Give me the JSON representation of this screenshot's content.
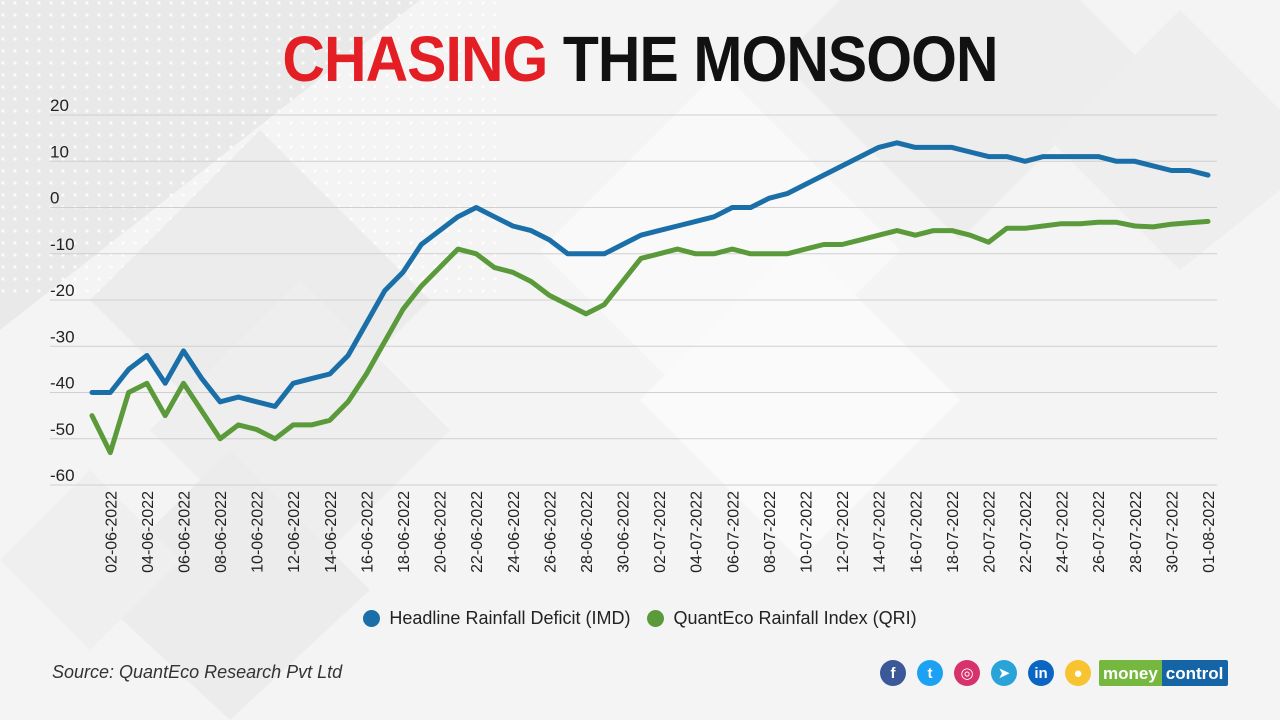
{
  "title": {
    "highlight": "CHASING",
    "rest": "THE MONSOON"
  },
  "colors": {
    "title_highlight": "#e31e24",
    "series_imd": "#1b6fa8",
    "series_qri": "#5b9a3a"
  },
  "source": "Source:  QuantEco Research Pvt Ltd",
  "social": [
    {
      "name": "facebook-icon",
      "glyph": "f",
      "color": "#3b5998"
    },
    {
      "name": "twitter-icon",
      "glyph": "t",
      "color": "#1da1f2"
    },
    {
      "name": "instagram-icon",
      "glyph": "◎",
      "color": "#d6336c"
    },
    {
      "name": "telegram-icon",
      "glyph": "➤",
      "color": "#2aa3d8"
    },
    {
      "name": "linkedin-icon",
      "glyph": "in",
      "color": "#0a66c2"
    },
    {
      "name": "koo-icon",
      "glyph": "●",
      "color": "#f7c331"
    }
  ],
  "brand": {
    "part1": "money",
    "part2": "control"
  },
  "chart_data": {
    "type": "line",
    "title": "CHASING THE MONSOON",
    "ylim": [
      -60,
      20
    ],
    "yticks": [
      20,
      10,
      0,
      -10,
      -20,
      -30,
      -40,
      -50,
      -60
    ],
    "grid": true,
    "legend_position": "bottom",
    "x": [
      "01-06-2022",
      "02-06-2022",
      "03-06-2022",
      "04-06-2022",
      "05-06-2022",
      "06-06-2022",
      "07-06-2022",
      "08-06-2022",
      "09-06-2022",
      "10-06-2022",
      "11-06-2022",
      "12-06-2022",
      "13-06-2022",
      "14-06-2022",
      "15-06-2022",
      "16-06-2022",
      "17-06-2022",
      "18-06-2022",
      "19-06-2022",
      "20-06-2022",
      "21-06-2022",
      "22-06-2022",
      "23-06-2022",
      "24-06-2022",
      "25-06-2022",
      "26-06-2022",
      "27-06-2022",
      "28-06-2022",
      "29-06-2022",
      "30-06-2022",
      "01-07-2022",
      "02-07-2022",
      "03-07-2022",
      "04-07-2022",
      "05-07-2022",
      "06-07-2022",
      "07-07-2022",
      "08-07-2022",
      "09-07-2022",
      "10-07-2022",
      "11-07-2022",
      "12-07-2022",
      "13-07-2022",
      "14-07-2022",
      "15-07-2022",
      "16-07-2022",
      "17-07-2022",
      "18-07-2022",
      "19-07-2022",
      "20-07-2022",
      "21-07-2022",
      "22-07-2022",
      "23-07-2022",
      "24-07-2022",
      "25-07-2022",
      "26-07-2022",
      "27-07-2022",
      "28-07-2022",
      "29-07-2022",
      "30-07-2022",
      "31-07-2022",
      "01-08-2022"
    ],
    "tick_labels": [
      "02-06-2022",
      "04-06-2022",
      "06-06-2022",
      "08-06-2022",
      "10-06-2022",
      "12-06-2022",
      "14-06-2022",
      "16-06-2022",
      "18-06-2022",
      "20-06-2022",
      "22-06-2022",
      "24-06-2022",
      "26-06-2022",
      "28-06-2022",
      "30-06-2022",
      "02-07-2022",
      "04-07-2022",
      "06-07-2022",
      "08-07-2022",
      "10-07-2022",
      "12-07-2022",
      "14-07-2022",
      "16-07-2022",
      "18-07-2022",
      "20-07-2022",
      "22-07-2022",
      "24-07-2022",
      "26-07-2022",
      "28-07-2022",
      "30-07-2022",
      "01-08-2022"
    ],
    "series": [
      {
        "name": "Headline Rainfall Deficit (IMD)",
        "color": "#1b6fa8",
        "values": [
          -40,
          -40,
          -35,
          -32,
          -38,
          -31,
          -37,
          -42,
          -41,
          -42,
          -43,
          -38,
          -37,
          -36,
          -32,
          -25,
          -18,
          -14,
          -8,
          -5,
          -2,
          0,
          -2,
          -4,
          -5,
          -7,
          -10,
          -10,
          -10,
          -8,
          -6,
          -5,
          -4,
          -3,
          -2,
          0,
          0,
          2,
          3,
          5,
          7,
          9,
          11,
          13,
          14,
          13,
          13,
          13,
          12,
          11,
          11,
          10,
          11,
          11,
          11,
          11,
          10,
          10,
          9,
          8,
          8,
          7
        ]
      },
      {
        "name": "QuantEco Rainfall Index (QRI)",
        "color": "#5b9a3a",
        "values": [
          -45,
          -53,
          -40,
          -38,
          -45,
          -38,
          -44,
          -50,
          -47,
          -48,
          -50,
          -47,
          -47,
          -46,
          -42,
          -36,
          -29,
          -22,
          -17,
          -13,
          -9,
          -10,
          -13,
          -14,
          -16,
          -19,
          -21,
          -23,
          -21,
          -16,
          -11,
          -10,
          -9,
          -10,
          -10,
          -9,
          -10,
          -10,
          -10,
          -9,
          -8,
          -8,
          -7,
          -6,
          -5,
          -6,
          -5,
          -5,
          -6,
          -7.5,
          -4.5,
          -4.5,
          -4,
          -3.5,
          -3.5,
          -3.2,
          -3.2,
          -4,
          -4.2,
          -3.6,
          -3.3,
          -3
        ]
      }
    ]
  }
}
